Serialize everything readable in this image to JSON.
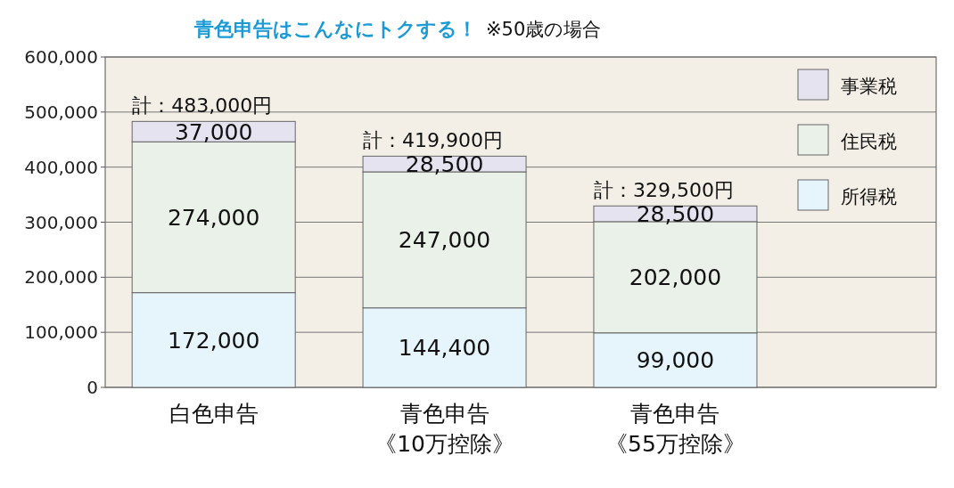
{
  "chart_data": {
    "type": "bar",
    "title": "青色申告はこんなにトクする！",
    "subtitle": "※50歳の場合",
    "categories": [
      "白色申告",
      "青色申告《10万控除》",
      "青色申告《55万控除》"
    ],
    "stacked": true,
    "series": [
      {
        "name": "所得税",
        "color": "#e6f4fb",
        "values": [
          172000,
          144400,
          99000
        ],
        "value_labels": [
          "172,000",
          "144,400",
          "99,000"
        ]
      },
      {
        "name": "住民税",
        "color": "#eaf1e8",
        "values": [
          274000,
          247000,
          202000
        ],
        "value_labels": [
          "274,000",
          "247,000",
          "202,000"
        ]
      },
      {
        "name": "事業税",
        "color": "#e6e3f0",
        "values": [
          37000,
          28500,
          28500
        ],
        "value_labels": [
          "37,000",
          "28,500",
          "28,500"
        ]
      }
    ],
    "totals": [
      "計：483,000円",
      "計：419,900円",
      "計：329,500円"
    ],
    "ylim": [
      0,
      600000
    ],
    "yticks": [
      0,
      {
        "value": 100000,
        "label": "100,000"
      },
      {
        "value": 200000,
        "label": "200,000"
      },
      {
        "value": 300000,
        "label": "300,000"
      },
      {
        "value": 400000,
        "label": "400,000"
      },
      {
        "value": 500000,
        "label": "500,000"
      },
      {
        "value": 600000,
        "label": "600,000"
      }
    ],
    "grid": "y",
    "legend": "top right"
  }
}
